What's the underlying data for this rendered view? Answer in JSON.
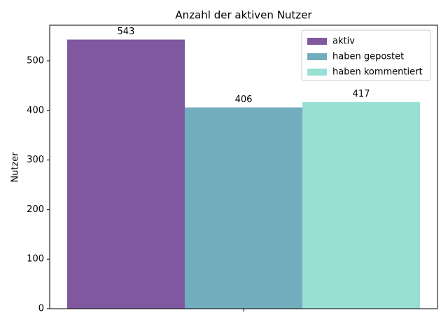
{
  "chart_data": {
    "type": "bar",
    "title": "Anzahl der aktiven Nutzer",
    "y_label": "Nutzer",
    "categories": [
      null
    ],
    "series": [
      {
        "name": "aktiv",
        "color": "#7f58a0",
        "values": [
          543
        ]
      },
      {
        "name": "haben gepostet",
        "color": "#72adbd",
        "values": [
          406
        ]
      },
      {
        "name": "haben kommentiert",
        "color": "#98dfd4",
        "values": [
          417
        ]
      }
    ],
    "ylim": [
      0,
      572
    ],
    "yticks": [
      0,
      100,
      200,
      300,
      400,
      500
    ],
    "legend": "upper right",
    "grid": false
  }
}
